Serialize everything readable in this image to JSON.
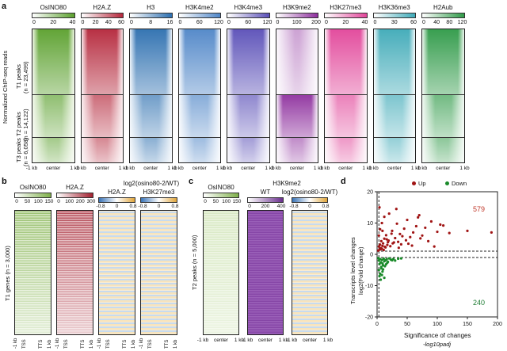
{
  "panel_a": {
    "letter": "a",
    "y_label": "Normalized ChIP-seq reads",
    "groups": [
      {
        "name": "T1 peaks",
        "n": "(n = 23,499)"
      },
      {
        "name": "T2 peaks",
        "n": "(n = 14,122)"
      },
      {
        "name": "T3 peaks",
        "n": "(n = 6,058)"
      }
    ],
    "columns": [
      {
        "name": "OsINO80",
        "ticks": [
          "0",
          "20",
          "40"
        ],
        "color": "#5aa02c",
        "light": "#eef6e2"
      },
      {
        "name": "H2A.Z",
        "ticks": [
          "0",
          "20",
          "40",
          "60"
        ],
        "color": "#b5263a",
        "light": "#f9e6e9"
      },
      {
        "name": "H3",
        "ticks": [
          "0",
          "8",
          "16"
        ],
        "color": "#2c6fb0",
        "light": "#e6eff8"
      },
      {
        "name": "H3K4me2",
        "ticks": [
          "0",
          "60",
          "120"
        ],
        "color": "#4f86c8",
        "light": "#f0f5fc"
      },
      {
        "name": "H3K4me3",
        "ticks": [
          "0",
          "60",
          "120"
        ],
        "color": "#5a4fb8",
        "light": "#f1f0fb"
      },
      {
        "name": "H3K9me2",
        "ticks": [
          "0",
          "100",
          "200"
        ],
        "color": "#8e2f9e",
        "light": "#f8effa"
      },
      {
        "name": "H3K27me3",
        "ticks": [
          "0",
          "20",
          "40"
        ],
        "color": "#e2459a",
        "light": "#fdf0f7"
      },
      {
        "name": "H3K36me3",
        "ticks": [
          "0",
          "30",
          "60"
        ],
        "color": "#3eaab8",
        "light": "#eef8fa"
      },
      {
        "name": "H2Aub",
        "ticks": [
          "0",
          "40",
          "80",
          "120"
        ],
        "color": "#2e9a47",
        "light": "#edf7ef"
      }
    ],
    "x_ticks": [
      "-1 kb",
      "center",
      "1 kb"
    ]
  },
  "panel_b": {
    "letter": "b",
    "y_label": "T1 genes (n = 3,000)",
    "log_title": "log2(osino80-2/WT)",
    "columns": [
      {
        "name": "OsINO80",
        "ticks": [
          "0",
          "50",
          "100",
          "150"
        ]
      },
      {
        "name": "H2A.Z",
        "ticks": [
          "0",
          "100",
          "200",
          "300"
        ]
      },
      {
        "name": "H2A.Z",
        "ticks": [
          "-0.8",
          "0",
          "0.8"
        ]
      },
      {
        "name": "H3K27me3",
        "ticks": [
          "-0.8",
          "0",
          "0.8"
        ]
      }
    ],
    "x_ticks": [
      "-1 kb",
      "TSS",
      "TTS",
      "1 kb"
    ]
  },
  "panel_c": {
    "letter": "c",
    "y_label": "T2 peaks (n = 5,000)",
    "group_title": "H3K9me2",
    "columns": [
      {
        "name": "OsINO80",
        "ticks": [
          "0",
          "50",
          "100",
          "150"
        ]
      },
      {
        "name": "WT",
        "ticks": [
          "0",
          "200",
          "400"
        ]
      },
      {
        "name": "log2(osino80-2/WT)",
        "ticks": [
          "-0.8",
          "0",
          "0.8"
        ]
      }
    ],
    "x_ticks": [
      "-1 kb",
      "center",
      "1 kb"
    ]
  },
  "panel_d": {
    "letter": "d",
    "y_label": "Transcripts level changes",
    "y_label2": "log2(Fold change)",
    "x_label": "Significance of changes",
    "x_label2": "-log10padj",
    "legend": [
      {
        "label": "Up",
        "color": "#a01414"
      },
      {
        "label": "Down",
        "color": "#1a8a2a"
      }
    ],
    "up_count": "579",
    "down_count": "240",
    "up_count_color": "#c0392b",
    "down_count_color": "#1a7a30"
  },
  "chart_data": {
    "type": "scatter",
    "title": "",
    "xlabel": "Significance of changes -log10padj",
    "ylabel": "Transcripts level changes log2(Fold change)",
    "xlim": [
      0,
      200
    ],
    "ylim": [
      -20,
      20
    ],
    "x_ticks": [
      0,
      50,
      100,
      150,
      200
    ],
    "y_ticks": [
      -20,
      -10,
      0,
      10,
      20
    ],
    "series": [
      {
        "name": "Up",
        "color": "#a01414",
        "x": [
          2,
          3,
          4,
          5,
          6,
          7,
          8,
          9,
          10,
          11,
          12,
          14,
          15,
          17,
          19,
          22,
          25,
          28,
          30,
          33,
          35,
          38,
          40,
          45,
          50,
          55,
          60,
          65,
          70,
          75,
          80,
          90,
          100,
          110,
          120,
          3,
          5,
          8,
          12,
          16,
          20,
          26,
          32,
          42,
          48,
          58,
          68,
          85,
          105,
          190,
          4,
          6,
          9,
          13,
          18,
          24,
          36,
          52,
          72,
          95,
          150
        ],
        "y": [
          1.2,
          2.5,
          1.5,
          3.1,
          2.0,
          4.2,
          1.8,
          2.7,
          3.5,
          1.4,
          5.0,
          2.2,
          6.1,
          3.0,
          4.4,
          2.6,
          7.5,
          3.8,
          5.2,
          9.8,
          4.0,
          6.5,
          3.2,
          8.2,
          11.0,
          5.5,
          7.0,
          9.0,
          12.5,
          6.0,
          8.5,
          10.5,
          7.2,
          9.2,
          6.8,
          6.0,
          8.0,
          10.0,
          12.0,
          4.8,
          13.0,
          3.5,
          14.5,
          5.8,
          4.5,
          2.8,
          11.8,
          4.2,
          9.5,
          7.0,
          15.0,
          1.6,
          7.5,
          2.4,
          3.9,
          6.6,
          2.1,
          3.4,
          5.1,
          2.5,
          7.5
        ]
      },
      {
        "name": "Down",
        "color": "#1a8a2a",
        "x": [
          2,
          3,
          4,
          5,
          6,
          7,
          8,
          9,
          10,
          11,
          12,
          14,
          16,
          18,
          20,
          23,
          27,
          30,
          35,
          40,
          3,
          5,
          7,
          9,
          13,
          15,
          4,
          6,
          8,
          10,
          12,
          17,
          25
        ],
        "y": [
          -1.2,
          -2.0,
          -3.1,
          -1.5,
          -2.6,
          -4.0,
          -1.8,
          -2.9,
          -3.5,
          -1.4,
          -2.2,
          -1.9,
          -1.6,
          -2.4,
          -1.3,
          -1.7,
          -1.5,
          -2.0,
          -1.4,
          -1.3,
          -5.0,
          -6.2,
          -4.5,
          -5.5,
          -3.8,
          -3.2,
          -7.0,
          -8.1,
          -6.6,
          -4.8,
          -7.5,
          -2.7,
          -1.9
        ]
      }
    ],
    "annotations": [
      "579",
      "240"
    ]
  }
}
